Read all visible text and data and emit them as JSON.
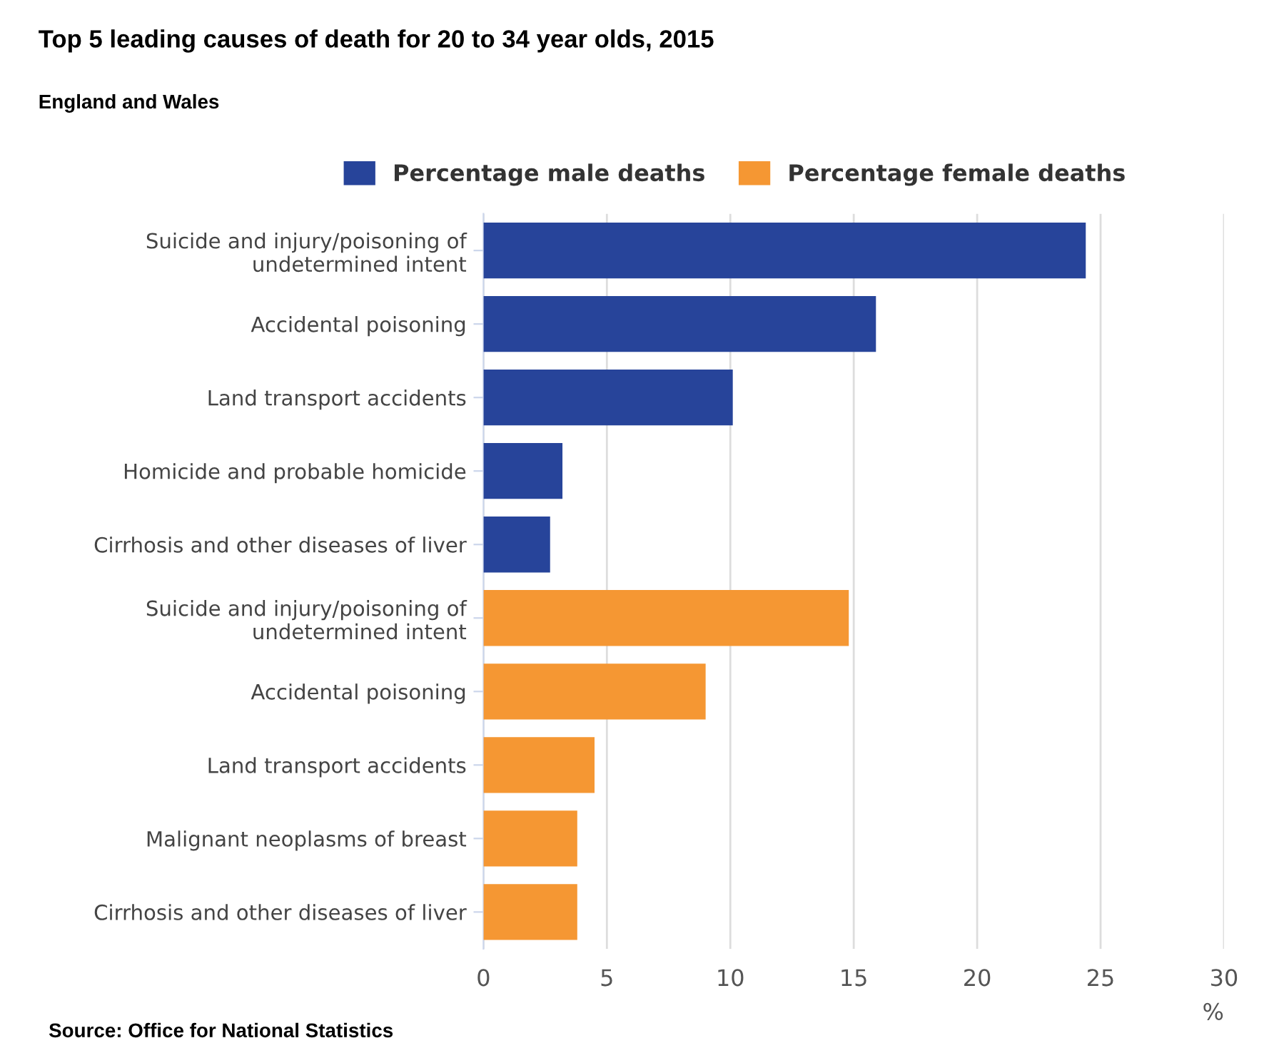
{
  "chart_data": {
    "type": "bar",
    "orientation": "horizontal",
    "title": "Top 5 leading causes of death for 20 to 34 year olds, 2015",
    "subtitle": "England and Wales",
    "xlabel": "%",
    "categories": [
      "Suicide and injury/poisoning of undetermined intent",
      "Accidental poisoning",
      "Land transport accidents",
      "Homicide and probable homicide",
      "Cirrhosis and other diseases of liver",
      "Suicide and injury/poisoning of undetermined intent",
      "Accidental poisoning",
      "Land transport accidents",
      "Malignant neoplasms of breast",
      "Cirrhosis and other diseases of liver"
    ],
    "series": [
      {
        "name": "Percentage male deaths",
        "color": "#27449a",
        "values": [
          24.4,
          15.9,
          10.1,
          3.2,
          2.7,
          null,
          null,
          null,
          null,
          null
        ]
      },
      {
        "name": "Percentage female deaths",
        "color": "#f59733",
        "values": [
          null,
          null,
          null,
          null,
          null,
          14.8,
          9.0,
          4.5,
          3.8,
          3.8
        ]
      }
    ],
    "xlim": [
      0,
      30
    ],
    "xticks": [
      0,
      5,
      10,
      15,
      20,
      25,
      30
    ],
    "grid": "x",
    "legend": "top",
    "annotations": [
      "Source: Office for National Statistics"
    ]
  }
}
